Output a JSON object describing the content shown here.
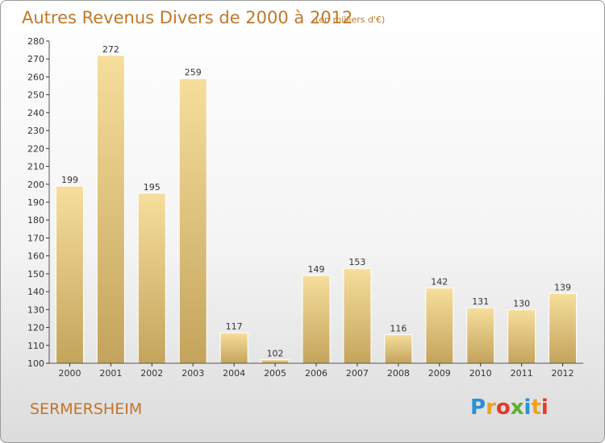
{
  "header": {
    "title": "Autres Revenus Divers de 2000 à 2012",
    "subtitle": "(en milliers d'€)"
  },
  "footer": {
    "place": "SERMERSHEIM",
    "logo_text": "Proxiti",
    "logo_letters": [
      {
        "ch": "P",
        "color": "#2a8fd8"
      },
      {
        "ch": "r",
        "color": "#f0a020"
      },
      {
        "ch": "o",
        "color": "#e23a2a"
      },
      {
        "ch": "x",
        "color": "#5db02e"
      },
      {
        "ch": "i",
        "color": "#2a8fd8"
      },
      {
        "ch": "t",
        "color": "#f0a020"
      },
      {
        "ch": "i",
        "color": "#e23a2a"
      }
    ]
  },
  "colors": {
    "title": "#c07828",
    "bar_top": "#f6de9c",
    "bar_bottom": "#c4a45c",
    "axis": "#555555",
    "grid_tick": "#333333"
  },
  "chart_data": {
    "type": "bar",
    "categories": [
      "2000",
      "2001",
      "2002",
      "2003",
      "2004",
      "2005",
      "2006",
      "2007",
      "2008",
      "2009",
      "2010",
      "2011",
      "2012"
    ],
    "values": [
      199,
      272,
      195,
      259,
      117,
      102,
      149,
      153,
      116,
      142,
      131,
      130,
      139
    ],
    "title": "Autres Revenus Divers de 2000 à 2012",
    "ylabel": "",
    "xlabel": "",
    "ylim": [
      100,
      280
    ],
    "yticks": [
      100,
      110,
      120,
      130,
      140,
      150,
      160,
      170,
      180,
      190,
      200,
      210,
      220,
      230,
      240,
      250,
      260,
      270,
      280
    ],
    "grid": false,
    "data_labels": true
  }
}
